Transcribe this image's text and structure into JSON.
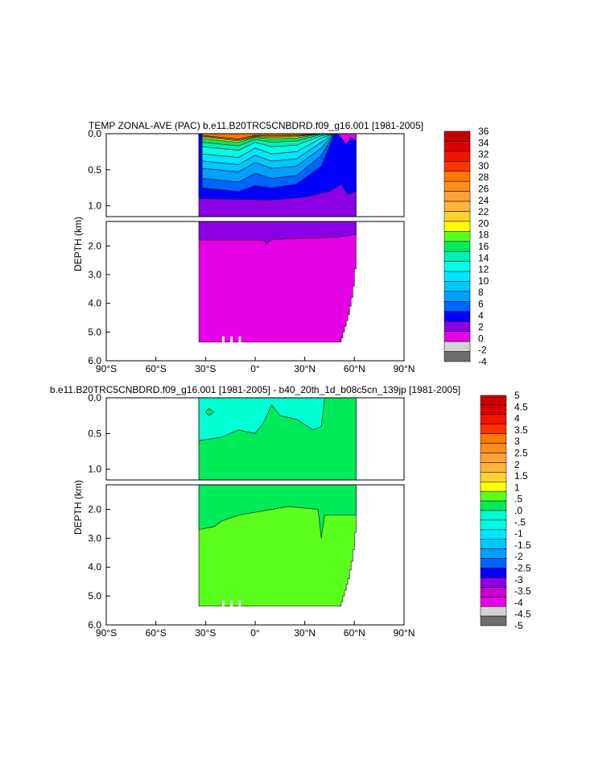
{
  "chart_data": [
    {
      "type": "heatmap",
      "title": "TEMP ZONAL-AVE (PAC) b.e11.B20TRC5CNBDRD.f09_g16.001 [1981-2005]",
      "ylabel": "DEPTH (km)",
      "x_ticks": [
        "90°S",
        "60°S",
        "30°S",
        "0°",
        "30°N",
        "60°N",
        "90°N"
      ],
      "x_tick_values": [
        -90,
        -60,
        -30,
        0,
        30,
        60,
        90
      ],
      "xlim": [
        -90,
        90
      ],
      "upper_panel": {
        "ylim": [
          0,
          1.15
        ],
        "y_ticks": [
          "0.0",
          "0.5",
          "1.0"
        ],
        "y_tick_values": [
          0,
          0.5,
          1.0
        ]
      },
      "lower_panel": {
        "ylim": [
          1.15,
          6.0
        ],
        "y_ticks": [
          "2.0",
          "3.0",
          "4.0",
          "5.0",
          "6.0"
        ],
        "y_tick_values": [
          2,
          3,
          4,
          5,
          6
        ]
      },
      "data_extent": {
        "lat_min": -34,
        "lat_max": 61,
        "max_depth_km": 5.35
      },
      "colorbar_labels": [
        "36",
        "34",
        "32",
        "30",
        "28",
        "26",
        "24",
        "22",
        "20",
        "18",
        "16",
        "14",
        "12",
        "10",
        "8",
        "6",
        "4",
        "2",
        "0",
        "-2",
        "-4"
      ],
      "colorbar_colors": [
        "#c80000",
        "#dc0000",
        "#f01400",
        "#ff3200",
        "#ff7800",
        "#ff8c1e",
        "#ffa03c",
        "#ffb43c",
        "#ffd232",
        "#ffff00",
        "#5aff1e",
        "#00eb5a",
        "#00f0b4",
        "#00ffe6",
        "#00e6ff",
        "#00c8ff",
        "#00a0ff",
        "#0064ff",
        "#0000ff",
        "#8c00e6",
        "#e600e6",
        "#d2d2d2",
        "#6e6e6e"
      ],
      "regions": [
        {
          "value_range": "0 to 2",
          "description": "deep ocean below ~1.8 km"
        },
        {
          "value_range": "2 to 4",
          "description": "~1.0 to ~1.8 km"
        },
        {
          "value_range": "4 to 6",
          "description": "~0.8 to ~1.0 km and high-latitude north column"
        },
        {
          "value_range": "26 to 30",
          "description": "near-surface equatorial maximum"
        }
      ]
    },
    {
      "type": "heatmap",
      "title": "b.e11.B20TRC5CNBDRD.f09_g16.001 [1981-2005] - b40_20th_1d_b08c5cn_139jp [1981-2005]",
      "ylabel": "DEPTH (km)",
      "x_ticks": [
        "90°S",
        "60°S",
        "30°S",
        "0°",
        "30°N",
        "60°N",
        "90°N"
      ],
      "x_tick_values": [
        -90,
        -60,
        -30,
        0,
        30,
        60,
        90
      ],
      "xlim": [
        -90,
        90
      ],
      "upper_panel": {
        "ylim": [
          0,
          1.15
        ],
        "y_ticks": [
          "0.0",
          "0.5",
          "1.0"
        ],
        "y_tick_values": [
          0,
          0.5,
          1.0
        ]
      },
      "lower_panel": {
        "ylim": [
          1.15,
          6.0
        ],
        "y_ticks": [
          "2.0",
          "3.0",
          "4.0",
          "5.0",
          "6.0"
        ],
        "y_tick_values": [
          2,
          3,
          4,
          5,
          6
        ]
      },
      "data_extent": {
        "lat_min": -34,
        "lat_max": 61,
        "max_depth_km": 5.35
      },
      "colorbar_labels": [
        "5",
        "4.5",
        "4",
        "3.5",
        "3",
        "2.5",
        "2",
        "1.5",
        "1",
        ".5",
        ".0",
        "-.5",
        "-1",
        "-1.5",
        "-2",
        "-2.5",
        "-3",
        "-3.5",
        "-4",
        "-4.5",
        "-5"
      ],
      "colorbar_colors": [
        "#c80000",
        "#dc0000",
        "#f01400",
        "#ff3200",
        "#ff7800",
        "#ff8c1e",
        "#ffa03c",
        "#ffb43c",
        "#ffd232",
        "#ffff00",
        "#5aff1e",
        "#00eb5a",
        "#00ffd2",
        "#00ffe6",
        "#00e6ff",
        "#00c8ff",
        "#00a0ff",
        "#0064ff",
        "#0000ff",
        "#8c00e6",
        "#c800c8",
        "#e600e6",
        "#d2d2d2",
        "#6e6e6e"
      ],
      "regions": [
        {
          "value_range": "-.5 to .0",
          "description": "upper ocean south of ~45°N"
        },
        {
          "value_range": ".0 to .5",
          "description": "mid-depth band"
        },
        {
          "value_range": ".5 to 1",
          "description": "deep ocean below ~2 to 4 km"
        }
      ]
    }
  ]
}
